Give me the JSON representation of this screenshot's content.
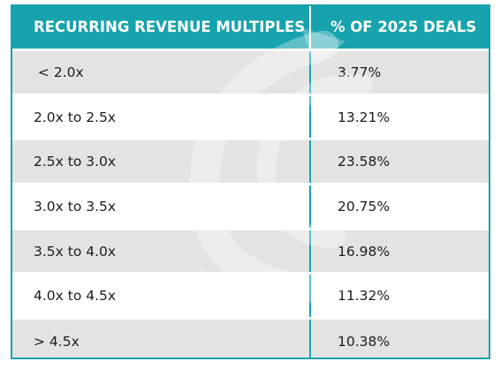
{
  "table": {
    "headers": [
      "RECURRING REVENUE MULTIPLES",
      "% OF 2025 DEALS"
    ],
    "rows": [
      {
        "range": " < 2.0x",
        "pct": "3.77%"
      },
      {
        "range": "2.0x to 2.5x",
        "pct": "13.21%"
      },
      {
        "range": "2.5x to 3.0x",
        "pct": "23.58%"
      },
      {
        "range": "3.0x to 3.5x",
        "pct": "20.75%"
      },
      {
        "range": "3.5x to 4.0x",
        "pct": "16.98%"
      },
      {
        "range": "4.0x to 4.5x",
        "pct": "11.32%"
      },
      {
        "range": "> 4.5x",
        "pct": "10.38%"
      }
    ]
  },
  "colors": {
    "header_bg": "#17a3ad",
    "header_text": "#ffffff",
    "row_shade": "#e3e3e4",
    "divider": "#17a3ad"
  }
}
